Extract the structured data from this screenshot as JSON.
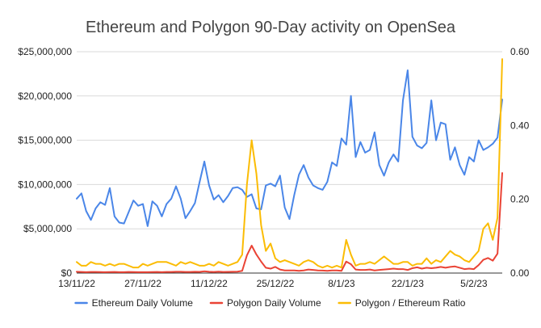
{
  "chart_data": {
    "type": "line",
    "title": "Ethereum and Polygon 90-Day activity on OpenSea",
    "x_tick_labels": [
      "13/11/22",
      "27/11/22",
      "11/12/22",
      "25/12/22",
      "8/1/23",
      "22/1/23",
      "5/2/23"
    ],
    "x_tick_indices": [
      0,
      14,
      28,
      42,
      56,
      70,
      84
    ],
    "left_axis": {
      "min": 0,
      "max": 25000000,
      "step": 5000000,
      "tick_labels": [
        "$0",
        "$5,000,000",
        "$10,000,000",
        "$15,000,000",
        "$20,000,000",
        "$25,000,000"
      ]
    },
    "right_axis": {
      "min": 0,
      "max": 0.6,
      "step": 0.2,
      "tick_labels": [
        "0.00",
        "0.20",
        "0.40",
        "0.60"
      ]
    },
    "grid": true,
    "legend_position": "bottom",
    "series": [
      {
        "name": "Ethereum Daily Volume",
        "axis": "left",
        "color": "#4a86e8",
        "values": [
          8400000,
          9000000,
          7000000,
          6000000,
          7300000,
          8000000,
          7700000,
          9600000,
          6400000,
          5700000,
          5600000,
          6900000,
          8200000,
          7600000,
          7800000,
          5300000,
          8100000,
          7600000,
          6400000,
          7800000,
          8400000,
          9800000,
          8400000,
          6200000,
          7000000,
          7900000,
          10300000,
          12600000,
          9900000,
          8300000,
          8800000,
          8000000,
          8700000,
          9600000,
          9700000,
          9400000,
          8600000,
          8900000,
          7300000,
          7200000,
          9900000,
          10100000,
          9800000,
          11000000,
          7400000,
          6100000,
          8800000,
          11100000,
          12200000,
          10800000,
          9900000,
          9600000,
          9400000,
          10300000,
          12500000,
          12100000,
          15200000,
          14500000,
          20000000,
          13100000,
          14800000,
          13600000,
          13900000,
          15900000,
          12200000,
          11000000,
          12500000,
          13400000,
          12600000,
          19500000,
          22900000,
          15400000,
          14400000,
          14100000,
          14700000,
          19500000,
          15000000,
          17000000,
          16800000,
          12800000,
          14200000,
          12200000,
          11100000,
          13100000,
          12600000,
          15000000,
          13900000,
          14200000,
          14600000,
          15300000,
          19600000
        ]
      },
      {
        "name": "Polygon Daily Volume",
        "axis": "left",
        "color": "#ea4335",
        "values": [
          150000,
          120000,
          100000,
          130000,
          120000,
          110000,
          100000,
          110000,
          120000,
          100000,
          100000,
          120000,
          110000,
          100000,
          100000,
          100000,
          110000,
          130000,
          100000,
          120000,
          130000,
          150000,
          150000,
          130000,
          120000,
          150000,
          140000,
          200000,
          150000,
          130000,
          160000,
          130000,
          140000,
          150000,
          160000,
          250000,
          2000000,
          3100000,
          2100000,
          1300000,
          600000,
          500000,
          700000,
          400000,
          300000,
          300000,
          300000,
          250000,
          300000,
          400000,
          350000,
          300000,
          280000,
          250000,
          300000,
          300000,
          250000,
          1300000,
          1000000,
          400000,
          350000,
          350000,
          400000,
          300000,
          350000,
          400000,
          450000,
          500000,
          450000,
          450000,
          350000,
          550000,
          650000,
          500000,
          600000,
          550000,
          600000,
          700000,
          600000,
          700000,
          750000,
          600000,
          450000,
          500000,
          450000,
          900000,
          1500000,
          1700000,
          1400000,
          2200000,
          11300000
        ]
      },
      {
        "name": "Polygon / Ethereum Ratio",
        "axis": "right",
        "color": "#fbbc04",
        "values": [
          0.03,
          0.02,
          0.02,
          0.03,
          0.025,
          0.025,
          0.02,
          0.025,
          0.02,
          0.025,
          0.025,
          0.02,
          0.015,
          0.015,
          0.025,
          0.02,
          0.025,
          0.03,
          0.03,
          0.03,
          0.025,
          0.02,
          0.03,
          0.025,
          0.03,
          0.025,
          0.02,
          0.02,
          0.025,
          0.02,
          0.03,
          0.025,
          0.02,
          0.025,
          0.03,
          0.05,
          0.24,
          0.36,
          0.27,
          0.13,
          0.06,
          0.08,
          0.04,
          0.03,
          0.035,
          0.03,
          0.025,
          0.02,
          0.03,
          0.035,
          0.03,
          0.02,
          0.015,
          0.02,
          0.015,
          0.02,
          0.015,
          0.09,
          0.05,
          0.02,
          0.025,
          0.025,
          0.03,
          0.025,
          0.035,
          0.045,
          0.035,
          0.025,
          0.025,
          0.03,
          0.03,
          0.02,
          0.025,
          0.025,
          0.04,
          0.025,
          0.035,
          0.03,
          0.045,
          0.06,
          0.05,
          0.045,
          0.035,
          0.03,
          0.045,
          0.06,
          0.12,
          0.135,
          0.09,
          0.15,
          0.58
        ]
      }
    ]
  }
}
